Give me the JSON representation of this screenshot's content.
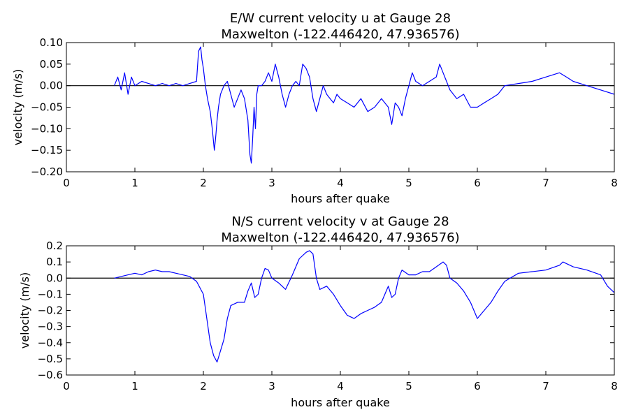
{
  "chart_data": [
    {
      "type": "line",
      "title": "E/W current velocity u at Gauge 28",
      "subtitle": "Maxwelton  (-122.446420, 47.936576)",
      "xlabel": "hours after quake",
      "ylabel": "velocity (m/s)",
      "xlim": [
        0,
        8
      ],
      "ylim": [
        -0.2,
        0.1
      ],
      "xticks": [
        "0",
        "1",
        "2",
        "3",
        "4",
        "5",
        "6",
        "7",
        "8"
      ],
      "yticks": [
        "0.10",
        "0.05",
        "0.00",
        "−0.05",
        "−0.10",
        "−0.15",
        "−0.20"
      ],
      "grid": false,
      "zero_line": true,
      "line_color": "#0000ff",
      "series": [
        {
          "x": [
            0.7,
            0.75,
            0.8,
            0.85,
            0.9,
            0.95,
            1.0,
            1.1,
            1.2,
            1.3,
            1.4,
            1.5,
            1.6,
            1.7,
            1.8,
            1.9,
            1.93,
            1.96,
            1.98,
            2.0,
            2.03,
            2.06,
            2.1,
            2.13,
            2.16,
            2.18,
            2.2,
            2.22,
            2.25,
            2.3,
            2.35,
            2.4,
            2.45,
            2.5,
            2.55,
            2.6,
            2.65,
            2.68,
            2.7,
            2.72,
            2.74,
            2.76,
            2.78,
            2.8,
            2.85,
            2.9,
            2.95,
            3.0,
            3.05,
            3.1,
            3.15,
            3.2,
            3.25,
            3.3,
            3.35,
            3.4,
            3.45,
            3.5,
            3.55,
            3.6,
            3.65,
            3.7,
            3.75,
            3.8,
            3.85,
            3.9,
            3.95,
            4.0,
            4.1,
            4.2,
            4.3,
            4.4,
            4.5,
            4.6,
            4.7,
            4.75,
            4.8,
            4.85,
            4.9,
            4.95,
            5.0,
            5.05,
            5.1,
            5.2,
            5.3,
            5.4,
            5.45,
            5.5,
            5.55,
            5.6,
            5.7,
            5.8,
            5.9,
            6.0,
            6.1,
            6.2,
            6.3,
            6.4,
            6.6,
            6.8,
            7.0,
            7.2,
            7.3,
            7.4,
            7.6,
            7.8,
            8.0
          ],
          "y": [
            0.0,
            0.02,
            -0.01,
            0.03,
            -0.02,
            0.02,
            0.0,
            0.01,
            0.005,
            0.0,
            0.005,
            0.0,
            0.005,
            0.0,
            0.005,
            0.01,
            0.08,
            0.09,
            0.06,
            0.04,
            0.0,
            -0.03,
            -0.06,
            -0.1,
            -0.15,
            -0.12,
            -0.08,
            -0.05,
            -0.02,
            0.0,
            0.01,
            -0.02,
            -0.05,
            -0.03,
            -0.01,
            -0.03,
            -0.08,
            -0.16,
            -0.18,
            -0.12,
            -0.05,
            -0.1,
            -0.02,
            0.0,
            0.0,
            0.01,
            0.03,
            0.01,
            0.05,
            0.02,
            -0.02,
            -0.05,
            -0.02,
            0.0,
            0.01,
            0.0,
            0.05,
            0.04,
            0.02,
            -0.03,
            -0.06,
            -0.03,
            0.0,
            -0.02,
            -0.03,
            -0.04,
            -0.02,
            -0.03,
            -0.04,
            -0.05,
            -0.03,
            -0.06,
            -0.05,
            -0.03,
            -0.05,
            -0.09,
            -0.04,
            -0.05,
            -0.07,
            -0.03,
            0.0,
            0.03,
            0.01,
            0.0,
            0.01,
            0.02,
            0.05,
            0.03,
            0.01,
            -0.01,
            -0.03,
            -0.02,
            -0.05,
            -0.05,
            -0.04,
            -0.03,
            -0.02,
            0.0,
            0.005,
            0.01,
            0.02,
            0.03,
            0.02,
            0.01,
            0.0,
            -0.01,
            -0.02
          ]
        }
      ]
    },
    {
      "type": "line",
      "title": "N/S current velocity v at Gauge 28",
      "subtitle": "Maxwelton  (-122.446420, 47.936576)",
      "xlabel": "hours after quake",
      "ylabel": "velocity (m/s)",
      "xlim": [
        0,
        8
      ],
      "ylim": [
        -0.6,
        0.2
      ],
      "xticks": [
        "0",
        "1",
        "2",
        "3",
        "4",
        "5",
        "6",
        "7",
        "8"
      ],
      "yticks": [
        "0.2",
        "0.1",
        "0.0",
        "−0.1",
        "−0.2",
        "−0.3",
        "−0.4",
        "−0.5",
        "−0.6"
      ],
      "grid": false,
      "zero_line": true,
      "line_color": "#0000ff",
      "series": [
        {
          "x": [
            0.7,
            0.8,
            0.9,
            1.0,
            1.1,
            1.2,
            1.3,
            1.4,
            1.5,
            1.6,
            1.7,
            1.8,
            1.9,
            2.0,
            2.05,
            2.1,
            2.15,
            2.2,
            2.25,
            2.3,
            2.35,
            2.4,
            2.5,
            2.6,
            2.65,
            2.7,
            2.75,
            2.8,
            2.85,
            2.9,
            2.95,
            3.0,
            3.1,
            3.2,
            3.3,
            3.4,
            3.5,
            3.55,
            3.6,
            3.65,
            3.7,
            3.8,
            3.9,
            4.0,
            4.1,
            4.2,
            4.3,
            4.4,
            4.5,
            4.6,
            4.65,
            4.7,
            4.75,
            4.8,
            4.85,
            4.9,
            5.0,
            5.1,
            5.2,
            5.3,
            5.4,
            5.5,
            5.55,
            5.6,
            5.7,
            5.8,
            5.9,
            5.95,
            6.0,
            6.1,
            6.2,
            6.3,
            6.4,
            6.6,
            6.8,
            7.0,
            7.2,
            7.25,
            7.3,
            7.4,
            7.6,
            7.8,
            7.9,
            8.0
          ],
          "y": [
            0.0,
            0.01,
            0.02,
            0.03,
            0.02,
            0.04,
            0.05,
            0.04,
            0.04,
            0.03,
            0.02,
            0.01,
            -0.02,
            -0.1,
            -0.25,
            -0.4,
            -0.48,
            -0.52,
            -0.45,
            -0.38,
            -0.25,
            -0.17,
            -0.15,
            -0.15,
            -0.08,
            -0.03,
            -0.12,
            -0.1,
            0.0,
            0.06,
            0.05,
            0.0,
            -0.03,
            -0.07,
            0.02,
            0.12,
            0.16,
            0.17,
            0.15,
            0.0,
            -0.07,
            -0.05,
            -0.1,
            -0.17,
            -0.23,
            -0.25,
            -0.22,
            -0.2,
            -0.18,
            -0.15,
            -0.1,
            -0.05,
            -0.12,
            -0.1,
            0.0,
            0.05,
            0.02,
            0.02,
            0.04,
            0.04,
            0.07,
            0.1,
            0.08,
            0.0,
            -0.03,
            -0.08,
            -0.15,
            -0.2,
            -0.25,
            -0.2,
            -0.15,
            -0.08,
            -0.02,
            0.03,
            0.04,
            0.05,
            0.08,
            0.1,
            0.09,
            0.07,
            0.05,
            0.02,
            -0.05,
            -0.09
          ]
        }
      ]
    }
  ]
}
